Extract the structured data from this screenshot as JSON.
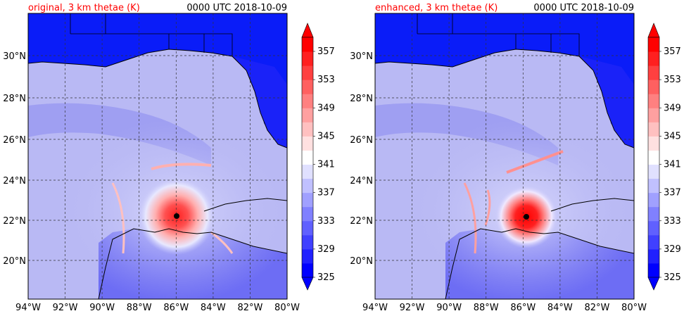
{
  "panels": [
    {
      "title_left": "original, 3 km thetae (K)",
      "title_right": "0000 UTC 2018-10-09",
      "storm_center": {
        "lon": -86.0,
        "lat": 22.2
      }
    },
    {
      "title_left": "enhanced, 3 km thetae (K)",
      "title_right": "0000 UTC 2018-10-09",
      "storm_center": {
        "lon": -85.8,
        "lat": 22.2
      }
    }
  ],
  "map_extent": {
    "lon": [
      -94,
      -80
    ],
    "lat": [
      18.2,
      32
    ]
  },
  "lon_ticks": [
    "94°W",
    "92°W",
    "90°W",
    "88°W",
    "86°W",
    "84°W",
    "82°W",
    "80°W"
  ],
  "lat_ticks": [
    "20°N",
    "22°N",
    "24°N",
    "26°N",
    "28°N",
    "30°N"
  ],
  "colorbar": {
    "labels": [
      "357",
      "353",
      "349",
      "345",
      "341",
      "337",
      "333",
      "329",
      "325"
    ],
    "colors": [
      "#0000ff",
      "#2020ff",
      "#4040ff",
      "#6060ff",
      "#8080ff",
      "#a0a0ff",
      "#c0c0ff",
      "#e0e0ff",
      "#ffffff",
      "#ffe0e0",
      "#ffc0c0",
      "#ffa0a0",
      "#ff8080",
      "#ff6060",
      "#ff4040",
      "#ff2020",
      "#ff0000"
    ]
  },
  "colors": {
    "title_left": "#ff0000",
    "title_right": "#000000",
    "land": "#0a1cf8",
    "ocean": "#b9b9f4"
  }
}
